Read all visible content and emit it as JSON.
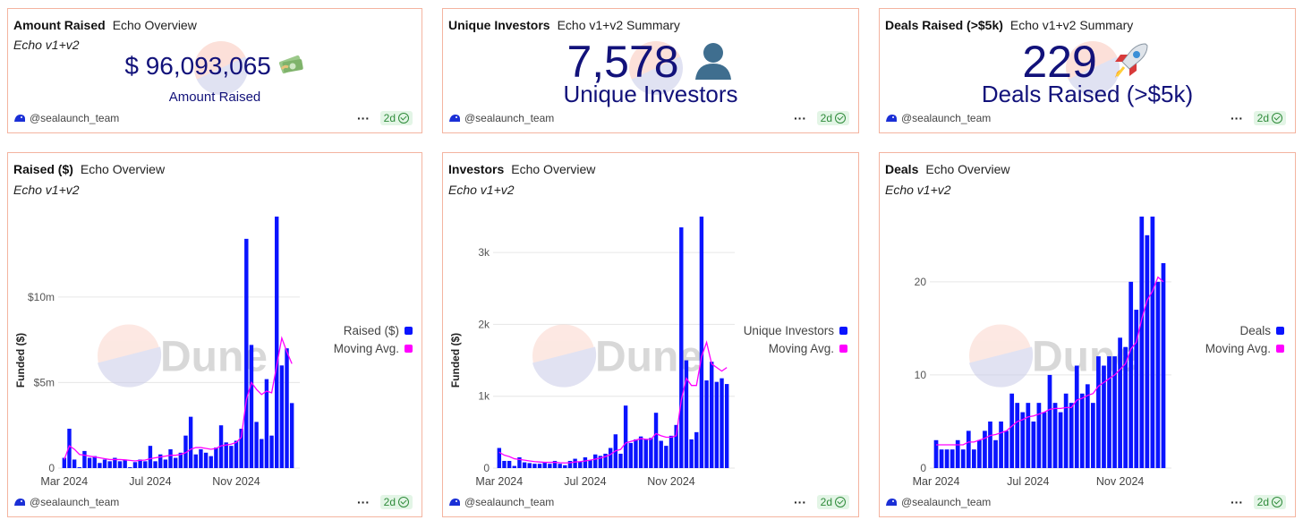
{
  "author": "@sealaunch_team",
  "age": "2d",
  "colors": {
    "bar": "#0a14ff",
    "avg": "#ff00ff",
    "kpi": "#12127a",
    "border": "#f4b4a0",
    "badge_bg": "#e3f5e6",
    "badge_fg": "#2e8b3a"
  },
  "kpis": [
    {
      "title": "Amount Raised",
      "subtitle": "Echo Overview",
      "tag": "Echo v1+v2",
      "value": "$ 96,093,065",
      "label": "Amount Raised",
      "icon": "money-bag-icon"
    },
    {
      "title": "Unique Investors",
      "subtitle": "Echo v1+v2 Summary",
      "tag": "",
      "value": "7,578",
      "label": "Unique Investors",
      "icon": "person-silhouette-icon"
    },
    {
      "title": "Deals Raised (>$5k)",
      "subtitle": "Echo v1+v2 Summary",
      "tag": "",
      "value": "229",
      "label": "Deals Raised (>$5k)",
      "icon": "rocket-icon"
    }
  ],
  "charts": [
    {
      "title": "Raised ($)",
      "subtitle": "Echo Overview",
      "tag": "Echo v1+v2",
      "watermark": "Dune",
      "legend": [
        "Raised ($)",
        "Moving Avg."
      ]
    },
    {
      "title": "Investors",
      "subtitle": "Echo Overview",
      "tag": "Echo v1+v2",
      "watermark": "Dune",
      "legend": [
        "Unique Investors",
        "Moving Avg."
      ]
    },
    {
      "title": "Deals",
      "subtitle": "Echo Overview",
      "tag": "Echo v1+v2",
      "watermark": "Dune",
      "legend": [
        "Deals",
        "Moving Avg."
      ]
    }
  ],
  "chart_data": [
    {
      "type": "bar",
      "title": "Raised ($)",
      "ylabel": "Funded ($)",
      "xticks": [
        "Mar 2024",
        "Jul 2024",
        "Nov 2024"
      ],
      "xtick_index": [
        0,
        17,
        34
      ],
      "ylim": [
        0,
        14700000
      ],
      "yticks": [
        {
          "v": 0,
          "t": "0"
        },
        {
          "v": 5000000,
          "t": "$5m"
        },
        {
          "v": 10000000,
          "t": "$10m"
        }
      ],
      "series": [
        {
          "name": "Raised ($)",
          "kind": "bar",
          "values": [
            600000,
            2300000,
            500000,
            50000,
            1000000,
            600000,
            700000,
            300000,
            500000,
            400000,
            600000,
            400000,
            500000,
            50000,
            350000,
            500000,
            400000,
            1300000,
            400000,
            800000,
            500000,
            1100000,
            600000,
            900000,
            1900000,
            3000000,
            800000,
            1100000,
            900000,
            700000,
            1200000,
            2500000,
            1500000,
            1300000,
            1600000,
            2300000,
            13400000,
            7200000,
            2700000,
            1700000,
            5200000,
            1900000,
            14700000,
            6000000,
            7000000,
            3800000
          ]
        },
        {
          "name": "Moving Avg.",
          "kind": "line",
          "values": [
            500000,
            1300000,
            1100000,
            800000,
            750000,
            700000,
            650000,
            600000,
            550000,
            500000,
            500000,
            500000,
            480000,
            450000,
            420000,
            450000,
            470000,
            550000,
            600000,
            650000,
            700000,
            750000,
            750000,
            800000,
            900000,
            1100000,
            1200000,
            1200000,
            1150000,
            1100000,
            1150000,
            1300000,
            1350000,
            1400000,
            1500000,
            1800000,
            4000000,
            5000000,
            4600000,
            4300000,
            4500000,
            4400000,
            6000000,
            7600000,
            6800000,
            6100000
          ]
        }
      ]
    },
    {
      "type": "bar",
      "title": "Investors",
      "ylabel": "Funded ($)",
      "xticks": [
        "Mar 2024",
        "Jul 2024",
        "Nov 2024"
      ],
      "xtick_index": [
        0,
        17,
        34
      ],
      "ylim": [
        0,
        3500
      ],
      "yticks": [
        {
          "v": 0,
          "t": "0"
        },
        {
          "v": 1000,
          "t": "1k"
        },
        {
          "v": 2000,
          "t": "2k"
        },
        {
          "v": 3000,
          "t": "3k"
        }
      ],
      "series": [
        {
          "name": "Unique Investors",
          "kind": "bar",
          "values": [
            280,
            100,
            100,
            30,
            150,
            80,
            70,
            60,
            60,
            80,
            60,
            100,
            60,
            40,
            100,
            130,
            90,
            150,
            110,
            190,
            170,
            200,
            280,
            470,
            200,
            870,
            350,
            400,
            440,
            400,
            420,
            770,
            380,
            310,
            450,
            600,
            3350,
            1500,
            400,
            500,
            3500,
            1220,
            1480,
            1200,
            1250,
            1170
          ]
        },
        {
          "name": "Moving Avg.",
          "kind": "line",
          "values": [
            220,
            180,
            160,
            130,
            120,
            110,
            100,
            90,
            85,
            80,
            80,
            80,
            75,
            72,
            75,
            85,
            90,
            100,
            110,
            125,
            140,
            160,
            190,
            240,
            260,
            350,
            370,
            390,
            410,
            400,
            400,
            480,
            450,
            430,
            430,
            450,
            950,
            1250,
            1150,
            1150,
            1550,
            1750,
            1450,
            1400,
            1350,
            1400
          ]
        }
      ]
    },
    {
      "type": "bar",
      "title": "Deals",
      "ylabel": "",
      "xticks": [
        "Mar 2024",
        "Jul 2024",
        "Nov 2024"
      ],
      "xtick_index": [
        0,
        17,
        34
      ],
      "ylim": [
        0,
        27
      ],
      "yticks": [
        {
          "v": 0,
          "t": "0"
        },
        {
          "v": 10,
          "t": "10"
        },
        {
          "v": 20,
          "t": "20"
        }
      ],
      "series": [
        {
          "name": "Deals",
          "kind": "bar",
          "values": [
            3,
            2,
            2,
            2,
            3,
            2,
            4,
            2,
            3,
            4,
            5,
            3,
            5,
            4,
            8,
            7,
            6,
            7,
            5,
            7,
            6,
            10,
            7,
            6,
            8,
            7,
            11,
            8,
            9,
            7,
            12,
            11,
            12,
            12,
            14,
            13,
            20,
            17,
            27,
            25,
            27,
            20,
            22
          ]
        },
        {
          "name": "Moving Avg.",
          "kind": "line",
          "values": [
            2.5,
            2.5,
            2.5,
            2.5,
            2.5,
            2.5,
            2.8,
            2.8,
            3,
            3.2,
            3.5,
            3.6,
            3.8,
            4,
            4.5,
            5,
            5.2,
            5.5,
            5.6,
            5.8,
            6,
            6.3,
            6.4,
            6.4,
            6.5,
            6.5,
            7.3,
            7.5,
            7.8,
            8,
            8.8,
            9.2,
            9.6,
            10,
            10.6,
            11.2,
            12.8,
            13.5,
            16,
            18,
            19,
            20.5,
            20
          ]
        }
      ]
    }
  ]
}
